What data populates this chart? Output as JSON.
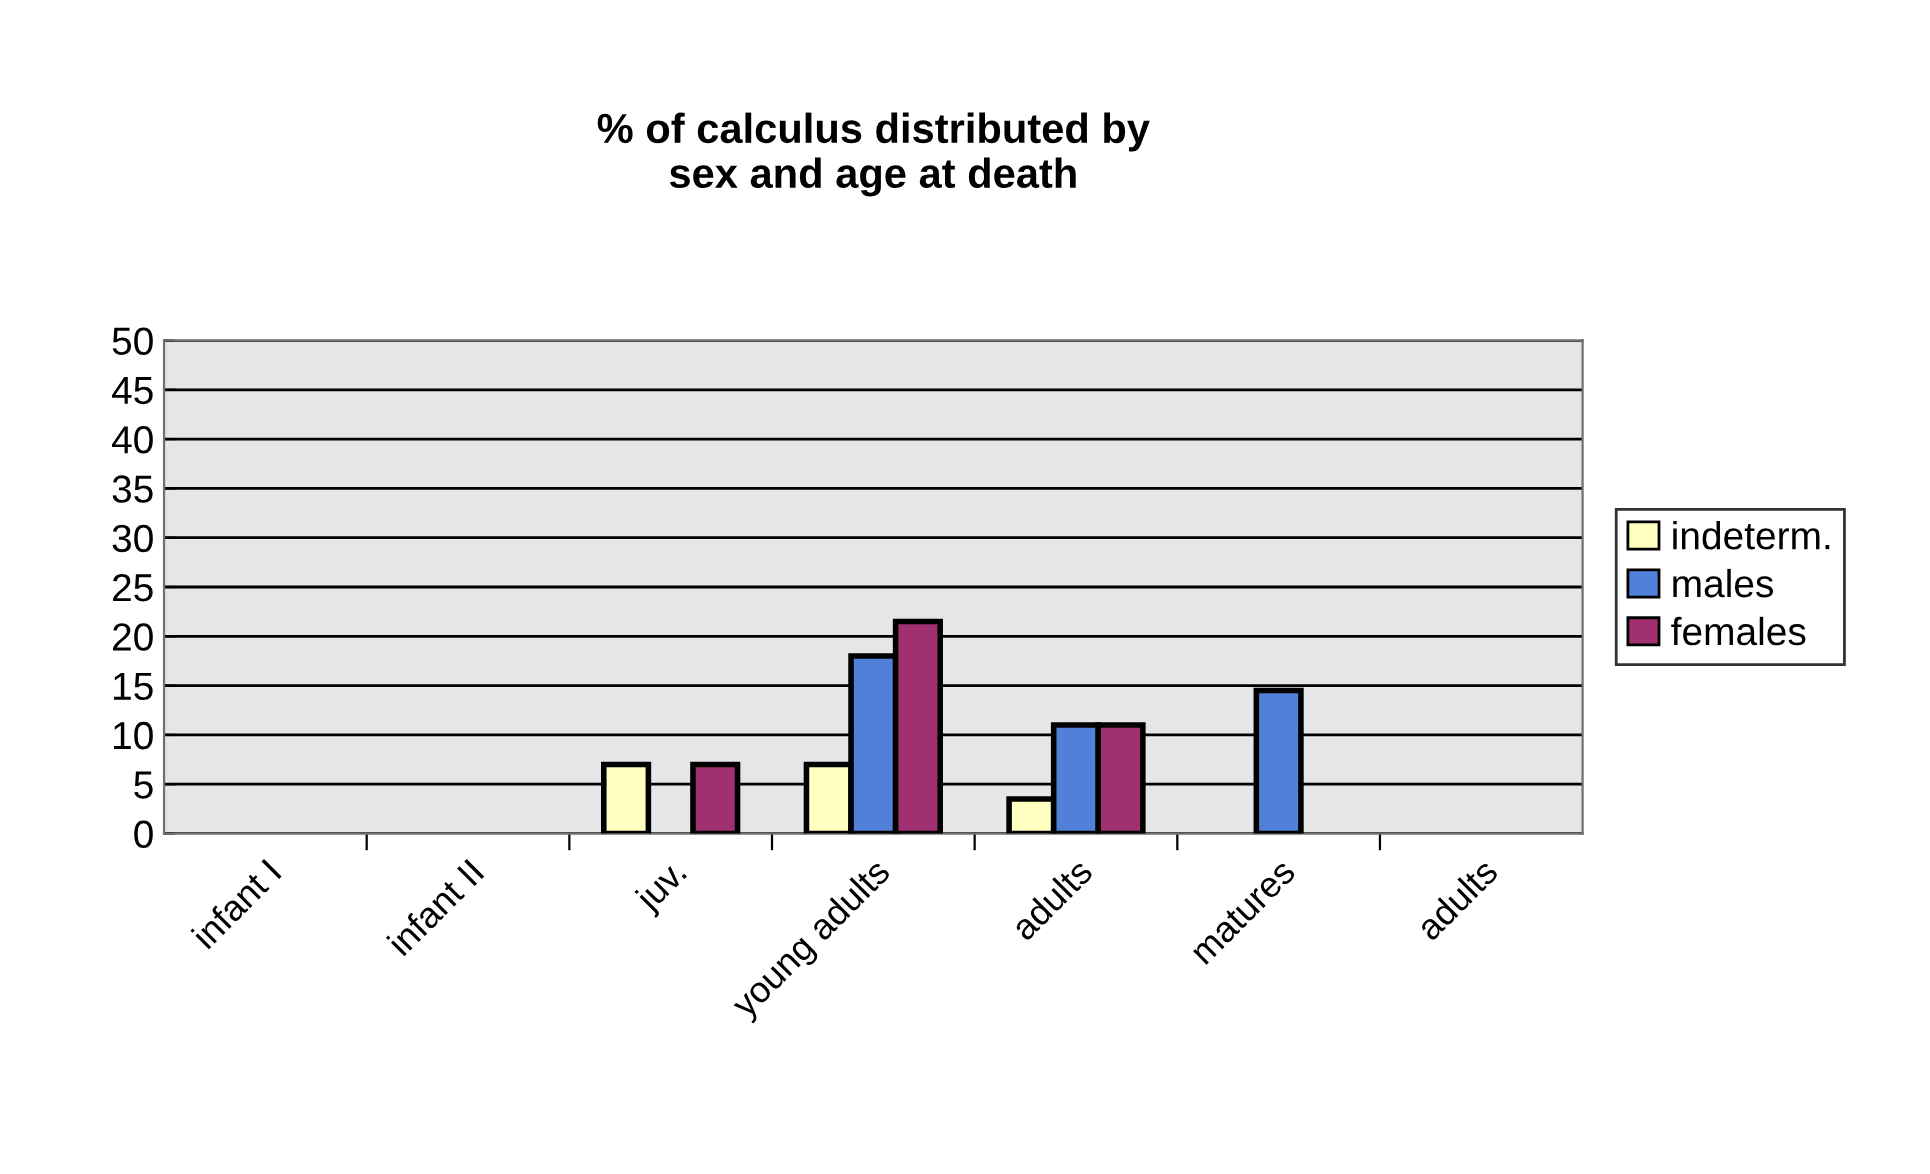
{
  "chart_data": {
    "type": "bar",
    "title": "% of calculus distributed by\nsex and age at death",
    "categories": [
      "infant I",
      "infant II",
      "juv.",
      "young adults",
      "adults",
      "matures",
      "adults"
    ],
    "series": [
      {
        "name": "indeterm.",
        "color": "#ffffc0",
        "values": [
          null,
          null,
          7,
          7,
          3.5,
          null,
          null
        ]
      },
      {
        "name": "males",
        "color": "#5080d8",
        "values": [
          null,
          null,
          null,
          18,
          11,
          14.5,
          null
        ]
      },
      {
        "name": "females",
        "color": "#a03070",
        "values": [
          null,
          null,
          7,
          21.5,
          11,
          null,
          null
        ]
      }
    ],
    "ylim": [
      0,
      50
    ],
    "yticks": [
      0,
      5,
      10,
      15,
      20,
      25,
      30,
      35,
      40,
      45,
      50
    ],
    "grid": "y",
    "legend": "right"
  }
}
